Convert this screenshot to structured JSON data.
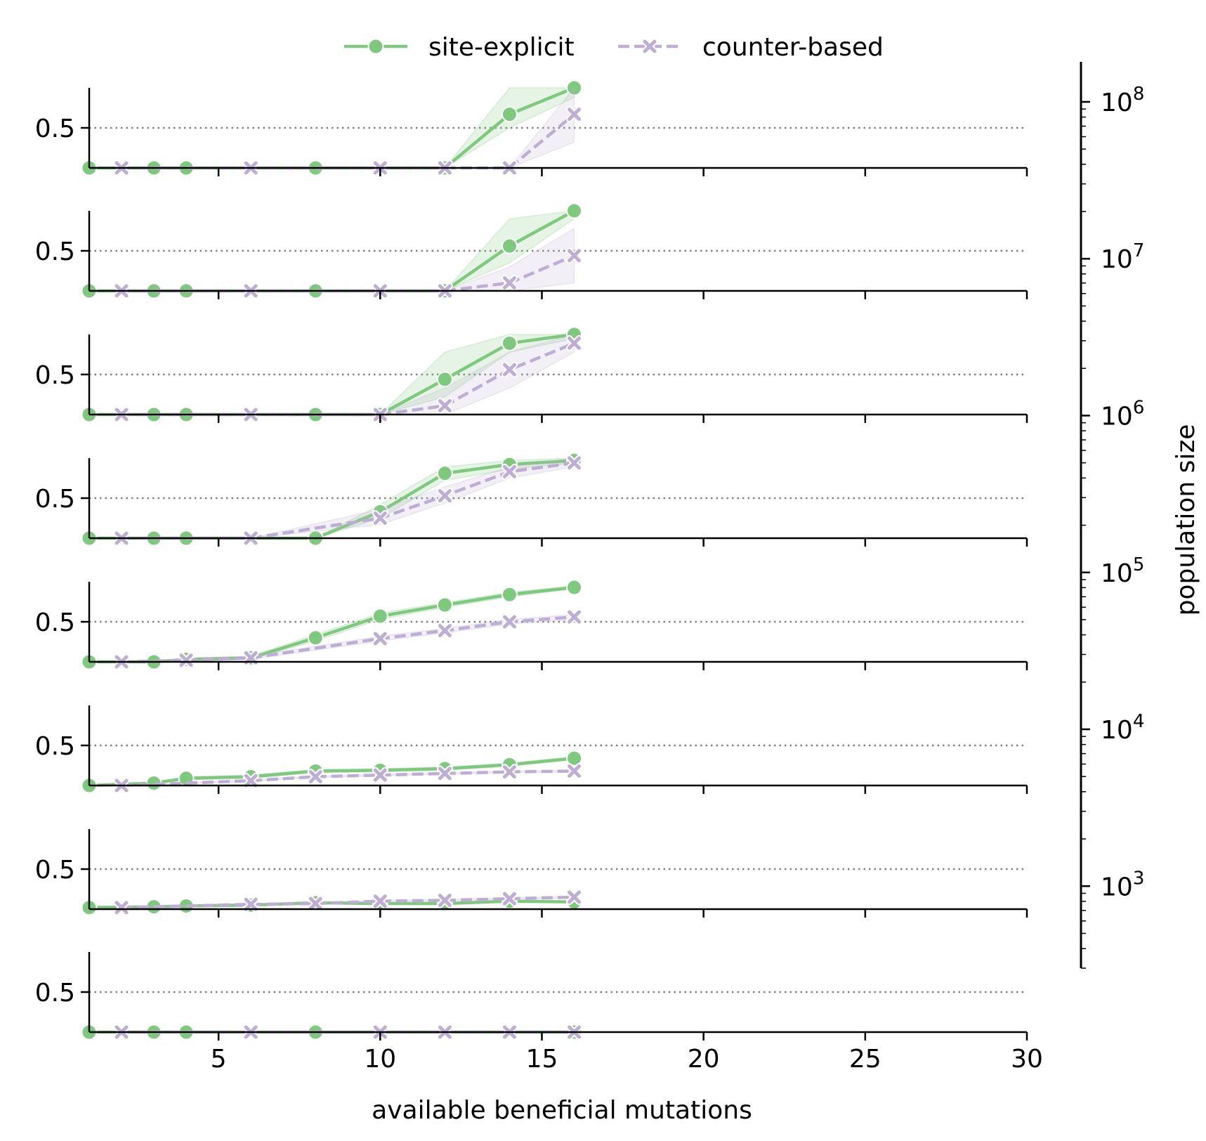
{
  "chart_data": {
    "type": "line",
    "layout": "small-multiples",
    "xlabel": "available beneficial mutations",
    "ylabel_right": "population size",
    "xlim": [
      1,
      30
    ],
    "x_ticks": [
      5,
      10,
      15,
      20,
      25,
      30
    ],
    "ylim": [
      0,
      1
    ],
    "y_ticks": [
      0.5
    ],
    "reference_line_y": 0.5,
    "legend": {
      "placement": "top-center"
    },
    "series_styles": [
      {
        "name": "site-explicit",
        "color": "#7fc97f",
        "dash": "solid",
        "marker": "circle"
      },
      {
        "name": "counter-based",
        "color": "#beaed4",
        "dash": "dashed",
        "marker": "x"
      }
    ],
    "right_axis": {
      "scale": "log",
      "tick_values": [
        1000,
        10000,
        100000,
        1000000,
        10000000,
        100000000
      ],
      "tick_labels": [
        {
          "base": "10",
          "exp": "3"
        },
        {
          "base": "10",
          "exp": "4"
        },
        {
          "base": "10",
          "exp": "5"
        },
        {
          "base": "10",
          "exp": "6"
        },
        {
          "base": "10",
          "exp": "7"
        },
        {
          "base": "10",
          "exp": "8"
        }
      ],
      "range": [
        300,
        180000000
      ]
    },
    "panels": [
      {
        "series": [
          {
            "name": "site-explicit",
            "x": [
              1,
              3,
              4,
              8,
              12,
              14,
              16
            ],
            "y": [
              0,
              0,
              0,
              0,
              0,
              0.67,
              1.0
            ],
            "ci_low": [
              0,
              0,
              0,
              0,
              0,
              0.5,
              0.88
            ],
            "ci_high": [
              0,
              0,
              0,
              0,
              0,
              1.0,
              1.0
            ]
          },
          {
            "name": "counter-based",
            "x": [
              2,
              6,
              10,
              12,
              14,
              16
            ],
            "y": [
              0,
              0,
              0,
              0,
              0,
              0.67
            ],
            "ci_low": [
              0,
              0,
              0,
              0,
              0,
              0.32
            ],
            "ci_high": [
              0,
              0,
              0,
              0,
              0,
              1.0
            ]
          }
        ]
      },
      {
        "series": [
          {
            "name": "site-explicit",
            "x": [
              1,
              3,
              4,
              8,
              12,
              14,
              16
            ],
            "y": [
              0,
              0,
              0,
              0,
              0,
              0.56,
              1.0
            ],
            "ci_low": [
              0,
              0,
              0,
              0,
              0,
              0.35,
              0.9
            ],
            "ci_high": [
              0,
              0,
              0,
              0,
              0,
              0.9,
              1.0
            ]
          },
          {
            "name": "counter-based",
            "x": [
              2,
              6,
              10,
              12,
              14,
              16
            ],
            "y": [
              0,
              0,
              0,
              0,
              0.1,
              0.44
            ],
            "ci_low": [
              0,
              0,
              0,
              0,
              0,
              0.1
            ],
            "ci_high": [
              0,
              0,
              0,
              0,
              0.3,
              0.78
            ]
          }
        ]
      },
      {
        "series": [
          {
            "name": "site-explicit",
            "x": [
              1,
              3,
              4,
              8,
              10,
              12,
              14,
              16
            ],
            "y": [
              0,
              0,
              0,
              0,
              0,
              0.44,
              0.89,
              1.0
            ],
            "ci_low": [
              0,
              0,
              0,
              0,
              0,
              0.22,
              0.78,
              0.95
            ],
            "ci_high": [
              0,
              0,
              0,
              0,
              0,
              0.78,
              1.0,
              1.0
            ]
          },
          {
            "name": "counter-based",
            "x": [
              2,
              6,
              10,
              12,
              14,
              16
            ],
            "y": [
              0,
              0,
              0,
              0.11,
              0.56,
              0.89
            ],
            "ci_low": [
              0,
              0,
              0,
              0,
              0.33,
              0.78
            ],
            "ci_high": [
              0,
              0,
              0,
              0.33,
              0.78,
              1.0
            ]
          }
        ]
      },
      {
        "series": [
          {
            "name": "site-explicit",
            "x": [
              1,
              3,
              4,
              8,
              10,
              12,
              14,
              16
            ],
            "y": [
              0,
              0,
              0,
              0,
              0.33,
              0.81,
              0.92,
              0.97
            ],
            "ci_low": [
              0,
              0,
              0,
              0,
              0.25,
              0.72,
              0.86,
              0.94
            ],
            "ci_high": [
              0,
              0,
              0,
              0,
              0.42,
              0.89,
              0.97,
              1.0
            ]
          },
          {
            "name": "counter-based",
            "x": [
              2,
              6,
              10,
              12,
              14,
              16
            ],
            "y": [
              0,
              0,
              0.25,
              0.53,
              0.83,
              0.94
            ],
            "ci_low": [
              0,
              0,
              0.17,
              0.44,
              0.75,
              0.89
            ],
            "ci_high": [
              0,
              0,
              0.36,
              0.64,
              0.89,
              1.0
            ]
          }
        ]
      },
      {
        "series": [
          {
            "name": "site-explicit",
            "x": [
              1,
              3,
              4,
              6,
              8,
              10,
              12,
              14,
              16
            ],
            "y": [
              0,
              0,
              0.03,
              0.05,
              0.3,
              0.57,
              0.71,
              0.84,
              0.93
            ],
            "ci_low": [
              0,
              0,
              0.01,
              0.03,
              0.26,
              0.53,
              0.68,
              0.81,
              0.91
            ],
            "ci_high": [
              0,
              0.01,
              0.05,
              0.07,
              0.34,
              0.61,
              0.74,
              0.87,
              0.95
            ]
          },
          {
            "name": "counter-based",
            "x": [
              2,
              4,
              6,
              10,
              12,
              14,
              16
            ],
            "y": [
              0,
              0.02,
              0.05,
              0.29,
              0.39,
              0.5,
              0.56
            ],
            "ci_low": [
              0,
              0.01,
              0.03,
              0.26,
              0.36,
              0.47,
              0.53
            ],
            "ci_high": [
              0,
              0.03,
              0.07,
              0.32,
              0.42,
              0.53,
              0.59
            ]
          }
        ]
      },
      {
        "series": [
          {
            "name": "site-explicit",
            "x": [
              1,
              3,
              4,
              6,
              8,
              10,
              12,
              14,
              16
            ],
            "y": [
              0,
              0.03,
              0.09,
              0.11,
              0.18,
              0.19,
              0.21,
              0.26,
              0.34
            ],
            "ci_low": [
              0,
              0.02,
              0.07,
              0.09,
              0.16,
              0.17,
              0.19,
              0.24,
              0.32
            ],
            "ci_high": [
              0,
              0.04,
              0.11,
              0.13,
              0.2,
              0.21,
              0.23,
              0.28,
              0.36
            ]
          },
          {
            "name": "counter-based",
            "x": [
              2,
              6,
              8,
              10,
              12,
              14,
              16
            ],
            "y": [
              0,
              0.06,
              0.11,
              0.13,
              0.15,
              0.17,
              0.18
            ],
            "ci_low": [
              0,
              0.05,
              0.1,
              0.12,
              0.14,
              0.16,
              0.17
            ],
            "ci_high": [
              0,
              0.07,
              0.12,
              0.14,
              0.16,
              0.18,
              0.19
            ]
          }
        ]
      },
      {
        "series": [
          {
            "name": "site-explicit",
            "x": [
              1,
              3,
              4,
              6,
              8,
              10,
              12,
              14,
              16
            ],
            "y": [
              0.02,
              0.03,
              0.04,
              0.05,
              0.08,
              0.07,
              0.07,
              0.1,
              0.09
            ],
            "ci_low": [
              0.01,
              0.02,
              0.03,
              0.04,
              0.07,
              0.06,
              0.06,
              0.09,
              0.08
            ],
            "ci_high": [
              0.03,
              0.04,
              0.05,
              0.06,
              0.09,
              0.08,
              0.08,
              0.11,
              0.1
            ]
          },
          {
            "name": "counter-based",
            "x": [
              2,
              6,
              8,
              10,
              12,
              14,
              16
            ],
            "y": [
              0.02,
              0.06,
              0.07,
              0.1,
              0.11,
              0.13,
              0.15
            ],
            "ci_low": [
              0.01,
              0.05,
              0.06,
              0.09,
              0.1,
              0.12,
              0.14
            ],
            "ci_high": [
              0.03,
              0.07,
              0.08,
              0.11,
              0.12,
              0.14,
              0.16
            ]
          }
        ]
      },
      {
        "series": [
          {
            "name": "site-explicit",
            "x": [
              1,
              3,
              4,
              8,
              16
            ],
            "y": [
              0,
              0,
              0,
              0,
              0
            ],
            "ci_low": [
              0,
              0,
              0,
              0,
              0
            ],
            "ci_high": [
              0,
              0,
              0,
              0,
              0
            ]
          },
          {
            "name": "counter-based",
            "x": [
              2,
              6,
              10,
              12,
              14,
              16
            ],
            "y": [
              0,
              0,
              0,
              0,
              0,
              0
            ],
            "ci_low": [
              0,
              0,
              0,
              0,
              0,
              0
            ],
            "ci_high": [
              0,
              0,
              0,
              0,
              0,
              0
            ]
          }
        ]
      }
    ]
  }
}
